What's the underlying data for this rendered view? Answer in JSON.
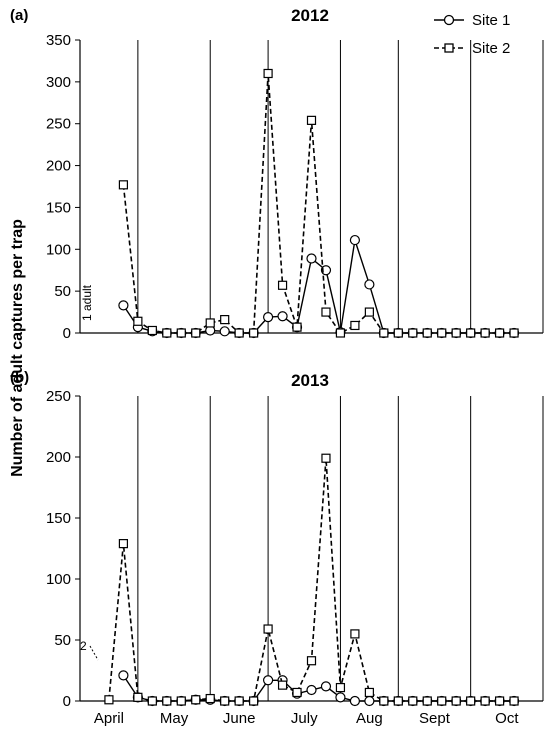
{
  "chart_data": [
    {
      "type": "line",
      "panel_label": "(a)",
      "title": "2012",
      "ylim": [
        0,
        350
      ],
      "yticks": [
        "0",
        "50",
        "100",
        "150",
        "200",
        "250",
        "300",
        "350"
      ],
      "months": [
        "April",
        "May",
        "June",
        "July",
        "Aug",
        "Sept",
        "Oct"
      ],
      "annotation": "1 adult",
      "grid": "vertical month separators",
      "series": [
        {
          "name": "Site 1",
          "style": "solid-circle",
          "points": [
            [
              3,
              33
            ],
            [
              4,
              7
            ],
            [
              5,
              2
            ],
            [
              6,
              0
            ],
            [
              7,
              0
            ],
            [
              8,
              0
            ],
            [
              9,
              3
            ],
            [
              10,
              2
            ],
            [
              11,
              0
            ],
            [
              12,
              0
            ],
            [
              13,
              19
            ],
            [
              14,
              20
            ],
            [
              15,
              7
            ],
            [
              16,
              89
            ],
            [
              17,
              75
            ],
            [
              18,
              1
            ],
            [
              19,
              111
            ],
            [
              20,
              58
            ],
            [
              21,
              0
            ],
            [
              22,
              0
            ],
            [
              23,
              0
            ],
            [
              24,
              0
            ],
            [
              25,
              0
            ],
            [
              26,
              0
            ],
            [
              27,
              0
            ],
            [
              28,
              0
            ],
            [
              29,
              0
            ],
            [
              30,
              0
            ]
          ]
        },
        {
          "name": "Site 2",
          "style": "dashed-square",
          "points": [
            [
              3,
              177
            ],
            [
              4,
              14
            ],
            [
              5,
              3
            ],
            [
              6,
              0
            ],
            [
              7,
              0
            ],
            [
              8,
              0
            ],
            [
              9,
              12
            ],
            [
              10,
              16
            ],
            [
              11,
              0
            ],
            [
              12,
              0
            ],
            [
              13,
              310
            ],
            [
              14,
              57
            ],
            [
              15,
              7
            ],
            [
              16,
              254
            ],
            [
              17,
              25
            ],
            [
              18,
              0
            ],
            [
              19,
              9
            ],
            [
              20,
              25
            ],
            [
              21,
              0
            ],
            [
              22,
              0
            ],
            [
              23,
              0
            ],
            [
              24,
              0
            ],
            [
              25,
              0
            ],
            [
              26,
              0
            ],
            [
              27,
              0
            ],
            [
              28,
              0
            ],
            [
              29,
              0
            ],
            [
              30,
              0
            ]
          ]
        }
      ]
    },
    {
      "type": "line",
      "panel_label": "(b)",
      "title": "2013",
      "ylim": [
        0,
        250
      ],
      "yticks": [
        "0",
        "50",
        "100",
        "150",
        "200",
        "250"
      ],
      "months": [
        "April",
        "May",
        "June",
        "July",
        "Aug",
        "Sept",
        "Oct"
      ],
      "annotation": "2",
      "grid": "vertical month separators",
      "series": [
        {
          "name": "Site 1",
          "style": "solid-circle",
          "points": [
            [
              3,
              21
            ],
            [
              4,
              3
            ],
            [
              5,
              0
            ],
            [
              6,
              0
            ],
            [
              7,
              0
            ],
            [
              8,
              1
            ],
            [
              9,
              1
            ],
            [
              10,
              0
            ],
            [
              11,
              0
            ],
            [
              12,
              0
            ],
            [
              13,
              17
            ],
            [
              14,
              17
            ],
            [
              15,
              6
            ],
            [
              16,
              9
            ],
            [
              17,
              12
            ],
            [
              18,
              3
            ],
            [
              19,
              0
            ],
            [
              20,
              0
            ],
            [
              21,
              0
            ],
            [
              22,
              0
            ],
            [
              23,
              0
            ],
            [
              24,
              0
            ],
            [
              25,
              0
            ],
            [
              26,
              0
            ],
            [
              27,
              0
            ],
            [
              28,
              0
            ],
            [
              29,
              0
            ],
            [
              30,
              0
            ]
          ]
        },
        {
          "name": "Site 2",
          "style": "dashed-square",
          "points": [
            [
              2,
              1
            ],
            [
              3,
              129
            ],
            [
              4,
              3
            ],
            [
              5,
              0
            ],
            [
              6,
              0
            ],
            [
              7,
              0
            ],
            [
              8,
              1
            ],
            [
              9,
              2
            ],
            [
              10,
              0
            ],
            [
              11,
              0
            ],
            [
              12,
              0
            ],
            [
              13,
              59
            ],
            [
              14,
              13
            ],
            [
              15,
              7
            ],
            [
              16,
              33
            ],
            [
              17,
              199
            ],
            [
              18,
              11
            ],
            [
              19,
              55
            ],
            [
              20,
              7
            ],
            [
              21,
              0
            ],
            [
              22,
              0
            ],
            [
              23,
              0
            ],
            [
              24,
              0
            ],
            [
              25,
              0
            ],
            [
              26,
              0
            ],
            [
              27,
              0
            ],
            [
              28,
              0
            ],
            [
              29,
              0
            ],
            [
              30,
              0
            ]
          ]
        }
      ]
    }
  ],
  "ylabel": "Number of adult captures per trap",
  "legend": [
    {
      "label": "Site 1",
      "style": "solid-circle"
    },
    {
      "label": "Site 2",
      "style": "dashed-square"
    }
  ]
}
